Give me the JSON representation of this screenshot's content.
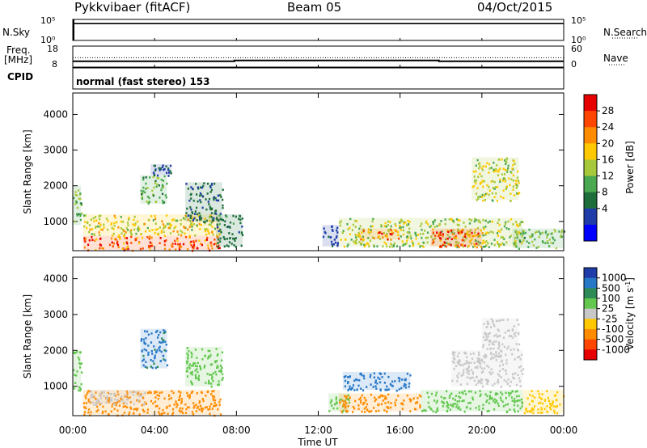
{
  "header": {
    "title": "Pykkvibaer (fitACF)",
    "beam": "Beam 05",
    "date": "04/Oct/2015"
  },
  "left_labels": {
    "nsky": "N.Sky",
    "freq_line1": "Freq.",
    "freq_line2": "[MHz]",
    "cpid": "CPID"
  },
  "right_labels": {
    "nsearch": "N.Search",
    "nave": "Nave"
  },
  "cpid_text": "normal (fast stereo) 153",
  "colors": {
    "trace": "#000000",
    "frame": "#000000"
  },
  "chart_data": [
    {
      "type": "line",
      "panel": "noise",
      "left_ticks": [
        "10^5",
        "10^0"
      ],
      "right_ticks": [
        "10^5",
        "10^0"
      ],
      "x_hours": [
        0,
        24
      ],
      "series": [
        {
          "values_log10": [
            4.0,
            4.0
          ]
        }
      ]
    },
    {
      "type": "line",
      "panel": "frequency-nave",
      "left_ticks": [
        "18",
        "8"
      ],
      "right_ticks": [
        "60",
        "0"
      ],
      "freq_ylim": [
        8,
        18
      ],
      "nave_ylim": [
        0,
        60
      ],
      "series": [
        {
          "role": "frequency",
          "x_hours": [
            0,
            7.9,
            7.9,
            17.9,
            17.9,
            24
          ],
          "values": [
            10.1,
            10.1,
            10.6,
            10.6,
            10.1,
            10.1
          ]
        },
        {
          "role": "nave",
          "style": "dotted",
          "x_hours": [
            0,
            24
          ],
          "values": [
            26,
            26
          ]
        }
      ]
    },
    {
      "type": "heatmap",
      "panel": "power",
      "ylabel": "Slant Range [km]",
      "ylim": [
        180,
        4600
      ],
      "yticks": [
        1000,
        2000,
        3000,
        4000
      ],
      "colorbar": {
        "label": "Power [dB]",
        "range": [
          0,
          32
        ],
        "ticks": [
          "4",
          "8",
          "12",
          "16",
          "20",
          "24",
          "28"
        ],
        "colors": [
          "#0000ff",
          "#1f3ca8",
          "#1e6e3c",
          "#4aa850",
          "#a8c83c",
          "#ffc800",
          "#ff8c00",
          "#ff4600",
          "#e60000"
        ]
      },
      "regions": [
        {
          "x": [
            0.0,
            0.4
          ],
          "y": [
            900,
            2000
          ],
          "value": 14
        },
        {
          "x": [
            0.5,
            7.2
          ],
          "y": [
            200,
            600
          ],
          "value": 26
        },
        {
          "x": [
            0.5,
            7.2
          ],
          "y": [
            600,
            1200
          ],
          "value": 18
        },
        {
          "x": [
            3.3,
            4.6
          ],
          "y": [
            1500,
            2300
          ],
          "value": 13
        },
        {
          "x": [
            3.8,
            4.8
          ],
          "y": [
            2300,
            2600
          ],
          "value": 7
        },
        {
          "x": [
            5.5,
            7.3
          ],
          "y": [
            1000,
            2100
          ],
          "value": 8
        },
        {
          "x": [
            7.0,
            8.3
          ],
          "y": [
            300,
            1200
          ],
          "value": 9
        },
        {
          "x": [
            12.2,
            13.0
          ],
          "y": [
            300,
            900
          ],
          "value": 6
        },
        {
          "x": [
            13.0,
            22.0
          ],
          "y": [
            300,
            1100
          ],
          "value": 16
        },
        {
          "x": [
            14.0,
            16.0
          ],
          "y": [
            500,
            800
          ],
          "value": 24
        },
        {
          "x": [
            17.5,
            20.0
          ],
          "y": [
            300,
            800
          ],
          "value": 26
        },
        {
          "x": [
            19.5,
            21.8
          ],
          "y": [
            1600,
            2800
          ],
          "value": 17
        },
        {
          "x": [
            21.5,
            24.0
          ],
          "y": [
            250,
            800
          ],
          "value": 14
        }
      ]
    },
    {
      "type": "heatmap",
      "panel": "velocity",
      "ylabel": "Slant Range [km]",
      "xlabel": "Time UT",
      "xticks": [
        "00:00",
        "04:00",
        "08:00",
        "12:00",
        "16:00",
        "20:00",
        "00:00"
      ],
      "ylim": [
        180,
        4600
      ],
      "yticks": [
        1000,
        2000,
        3000,
        4000
      ],
      "colorbar": {
        "label": "Velocity [m s-1]",
        "ticks": [
          "1000",
          "500",
          "100",
          "25",
          "-25",
          "-100",
          "-500",
          "-1000"
        ],
        "colors": [
          "#1f3ca8",
          "#2878c8",
          "#2e8b57",
          "#64c850",
          "#c8c8c8",
          "#ffc800",
          "#ff8c00",
          "#ff4600",
          "#e60000"
        ]
      },
      "regions": [
        {
          "x": [
            0.0,
            0.4
          ],
          "y": [
            900,
            2000
          ],
          "value": 60
        },
        {
          "x": [
            0.5,
            7.2
          ],
          "y": [
            200,
            900
          ],
          "value": -300
        },
        {
          "x": [
            0.8,
            3.5
          ],
          "y": [
            500,
            900
          ],
          "value": 0
        },
        {
          "x": [
            3.3,
            4.6
          ],
          "y": [
            1500,
            2600
          ],
          "value": 600
        },
        {
          "x": [
            5.5,
            7.3
          ],
          "y": [
            1000,
            2100
          ],
          "value": 60
        },
        {
          "x": [
            12.5,
            13.5
          ],
          "y": [
            300,
            800
          ],
          "value": 60
        },
        {
          "x": [
            13.0,
            17.0
          ],
          "y": [
            300,
            800
          ],
          "value": -250
        },
        {
          "x": [
            13.2,
            16.5
          ],
          "y": [
            900,
            1400
          ],
          "value": 700
        },
        {
          "x": [
            17.0,
            22.0
          ],
          "y": [
            300,
            900
          ],
          "value": 60
        },
        {
          "x": [
            18.5,
            22.0
          ],
          "y": [
            1000,
            2000
          ],
          "value": 0
        },
        {
          "x": [
            20.0,
            21.8
          ],
          "y": [
            2000,
            2900
          ],
          "value": 0
        },
        {
          "x": [
            22.0,
            24.0
          ],
          "y": [
            250,
            900
          ],
          "value": -60
        }
      ]
    }
  ]
}
